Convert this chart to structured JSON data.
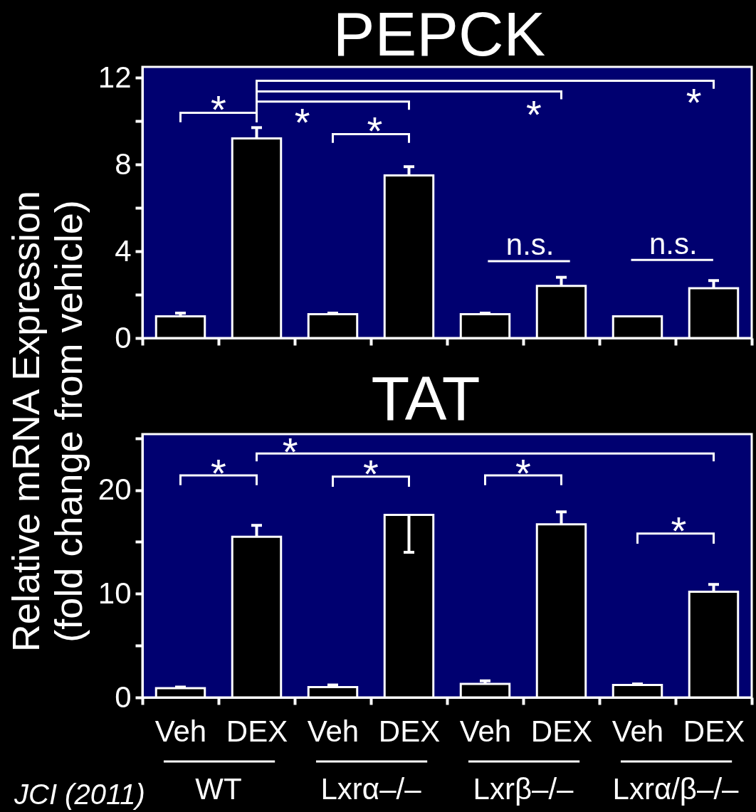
{
  "chart_data": [
    {
      "type": "bar",
      "title": "PEPCK",
      "ylabel": "Relative mRNA Expression\n(fold change from vehicle)",
      "categories": [
        null,
        null,
        null,
        null,
        null,
        null,
        null,
        null
      ],
      "values": [
        1.0,
        9.2,
        1.1,
        7.5,
        1.1,
        2.4,
        1.0,
        2.3
      ],
      "color": "#000000",
      "errors": [
        [
          1.0,
          1.15
        ],
        [
          9.2,
          9.7
        ],
        [
          1.1,
          1.15
        ],
        [
          7.5,
          7.9
        ],
        [
          1.1,
          1.15
        ],
        [
          2.4,
          2.8
        ],
        null,
        [
          2.3,
          2.65
        ]
      ],
      "ylim": [
        0,
        12.5
      ],
      "yticks": [
        0,
        {
          "value": 2,
          "label": null
        },
        4,
        {
          "value": 6,
          "label": null
        },
        8,
        {
          "value": 10,
          "label": null
        },
        12
      ],
      "tick_labels": "y",
      "annotations": [
        "*",
        "*",
        "*",
        "*",
        "*",
        "n.s.",
        "n.s."
      ]
    },
    {
      "type": "bar",
      "title": "TAT",
      "categories": [
        "Veh",
        "DEX",
        "Veh",
        "DEX",
        "Veh",
        "DEX",
        "Veh",
        "DEX"
      ],
      "values": [
        0.9,
        15.5,
        1.0,
        17.6,
        1.3,
        16.7,
        1.2,
        10.2
      ],
      "color": "#000000",
      "errors": [
        [
          0.9,
          1.0
        ],
        [
          15.5,
          16.6
        ],
        [
          1.0,
          1.2
        ],
        [
          14.0,
          17.6
        ],
        [
          1.3,
          1.6
        ],
        [
          16.7,
          17.9
        ],
        [
          1.2,
          1.3
        ],
        [
          10.2,
          10.9
        ]
      ],
      "ylim": [
        0,
        25.4
      ],
      "yticks": [
        0,
        {
          "value": 5,
          "label": null
        },
        10,
        {
          "value": 15,
          "label": null
        },
        20,
        {
          "value": 25,
          "label": null
        }
      ],
      "annotations": [
        "*",
        "*",
        "*",
        "*",
        "*",
        "WT",
        "Lxrα–/–",
        "Lxrβ–/–",
        "Lxrα/β–/–",
        "JCI (2011)"
      ]
    }
  ]
}
